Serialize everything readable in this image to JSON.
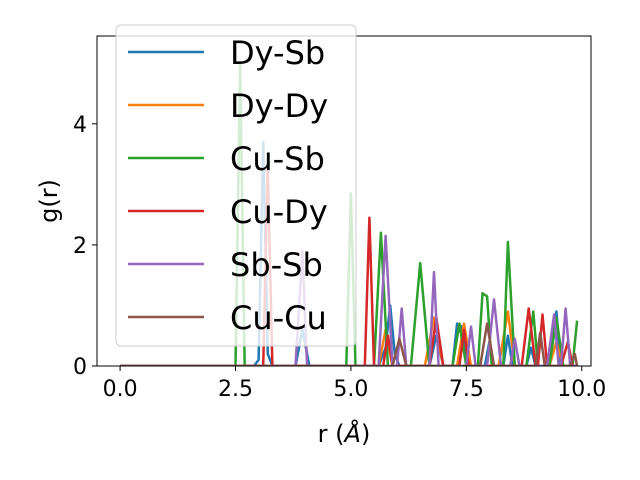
{
  "chart_data": {
    "type": "line",
    "title": "",
    "xlabel": "r (",
    "xlabel_unit": "Å",
    "xlabel_close": ")",
    "ylabel": "g(r)",
    "xlim": [
      -0.5,
      10.2
    ],
    "ylim": [
      0,
      5.45
    ],
    "xticks": [
      0.0,
      2.5,
      5.0,
      7.5,
      10.0
    ],
    "xtick_labels": [
      "0.0",
      "2.5",
      "5.0",
      "7.5",
      "10.0"
    ],
    "yticks": [
      0,
      2,
      4
    ],
    "ytick_labels": [
      "0",
      "2",
      "4"
    ],
    "legend_position": "top-left",
    "series": [
      {
        "name": "Dy-Sb",
        "color": "#1f77b4",
        "points": [
          [
            0,
            0
          ],
          [
            2.9,
            0
          ],
          [
            3.0,
            0.1
          ],
          [
            3.1,
            3.7
          ],
          [
            3.2,
            0.2
          ],
          [
            3.3,
            0
          ],
          [
            3.8,
            0
          ],
          [
            3.95,
            0.6
          ],
          [
            4.1,
            0
          ],
          [
            5.6,
            0
          ],
          [
            5.75,
            0.3
          ],
          [
            5.85,
            1.0
          ],
          [
            5.95,
            0.2
          ],
          [
            6.05,
            0
          ],
          [
            6.7,
            0
          ],
          [
            6.85,
            0.5
          ],
          [
            7.0,
            0
          ],
          [
            7.2,
            0
          ],
          [
            7.3,
            0.7
          ],
          [
            7.4,
            0.65
          ],
          [
            7.5,
            0
          ],
          [
            7.9,
            0
          ],
          [
            8.0,
            0.4
          ],
          [
            8.1,
            0
          ],
          [
            8.3,
            0
          ],
          [
            8.4,
            0.5
          ],
          [
            8.5,
            0
          ],
          [
            8.8,
            0
          ],
          [
            8.9,
            0.3
          ],
          [
            9.0,
            0
          ],
          [
            9.3,
            0
          ],
          [
            9.45,
            0.9
          ],
          [
            9.55,
            0
          ],
          [
            9.8,
            0
          ],
          [
            9.9,
            0
          ]
        ]
      },
      {
        "name": "Dy-Dy",
        "color": "#ff7f0e",
        "points": [
          [
            0,
            0
          ],
          [
            5.6,
            0
          ],
          [
            5.75,
            0.6
          ],
          [
            5.9,
            0
          ],
          [
            6.6,
            0
          ],
          [
            6.8,
            0.8
          ],
          [
            7.0,
            0
          ],
          [
            7.3,
            0
          ],
          [
            7.45,
            0.7
          ],
          [
            7.6,
            0
          ],
          [
            8.2,
            0
          ],
          [
            8.4,
            0.9
          ],
          [
            8.55,
            0
          ],
          [
            9.3,
            0
          ],
          [
            9.45,
            0.4
          ],
          [
            9.6,
            0
          ],
          [
            9.9,
            0
          ]
        ]
      },
      {
        "name": "Cu-Sb",
        "color": "#2ca02c",
        "points": [
          [
            0,
            0
          ],
          [
            2.5,
            0
          ],
          [
            2.6,
            5.0
          ],
          [
            2.7,
            0
          ],
          [
            4.9,
            0
          ],
          [
            5.0,
            2.85
          ],
          [
            5.1,
            0
          ],
          [
            5.5,
            0
          ],
          [
            5.65,
            2.2
          ],
          [
            5.8,
            0
          ],
          [
            6.3,
            0
          ],
          [
            6.5,
            1.7
          ],
          [
            6.7,
            0
          ],
          [
            7.2,
            0
          ],
          [
            7.35,
            0.7
          ],
          [
            7.5,
            0
          ],
          [
            7.75,
            0
          ],
          [
            7.85,
            1.2
          ],
          [
            7.95,
            1.15
          ],
          [
            8.05,
            0
          ],
          [
            8.3,
            0
          ],
          [
            8.4,
            2.05
          ],
          [
            8.55,
            0
          ],
          [
            8.8,
            0
          ],
          [
            8.95,
            0.9
          ],
          [
            9.05,
            0
          ],
          [
            9.3,
            0
          ],
          [
            9.45,
            0.8
          ],
          [
            9.6,
            0
          ],
          [
            9.8,
            0
          ],
          [
            9.9,
            0.75
          ]
        ]
      },
      {
        "name": "Cu-Dy",
        "color": "#d62728",
        "points": [
          [
            0,
            0
          ],
          [
            3.1,
            0
          ],
          [
            3.2,
            3.3
          ],
          [
            3.3,
            0
          ],
          [
            5.3,
            0
          ],
          [
            5.4,
            2.45
          ],
          [
            5.5,
            0
          ],
          [
            5.7,
            0
          ],
          [
            5.8,
            0.5
          ],
          [
            5.9,
            0
          ],
          [
            6.7,
            0
          ],
          [
            6.85,
            0.8
          ],
          [
            7.0,
            0
          ],
          [
            7.35,
            0
          ],
          [
            7.45,
            0.6
          ],
          [
            7.55,
            0
          ],
          [
            8.7,
            0
          ],
          [
            8.85,
            0.95
          ],
          [
            9.0,
            0
          ],
          [
            9.05,
            0
          ],
          [
            9.15,
            0.85
          ],
          [
            9.25,
            0
          ],
          [
            9.55,
            0
          ],
          [
            9.7,
            0.4
          ],
          [
            9.8,
            0
          ],
          [
            9.9,
            0
          ]
        ]
      },
      {
        "name": "Sb-Sb",
        "color": "#9467bd",
        "points": [
          [
            0,
            0
          ],
          [
            3.8,
            0
          ],
          [
            3.95,
            1.9
          ],
          [
            4.05,
            0
          ],
          [
            5.6,
            0
          ],
          [
            5.75,
            2.15
          ],
          [
            5.9,
            0
          ],
          [
            6.0,
            0
          ],
          [
            6.1,
            0.95
          ],
          [
            6.2,
            0
          ],
          [
            6.7,
            0
          ],
          [
            6.8,
            1.55
          ],
          [
            6.9,
            0
          ],
          [
            7.5,
            0
          ],
          [
            7.6,
            0.65
          ],
          [
            7.7,
            0
          ],
          [
            7.95,
            0
          ],
          [
            8.1,
            1.1
          ],
          [
            8.25,
            0
          ],
          [
            8.45,
            0
          ],
          [
            8.55,
            0.45
          ],
          [
            8.65,
            0
          ],
          [
            9.25,
            0
          ],
          [
            9.4,
            0.85
          ],
          [
            9.5,
            0
          ],
          [
            9.55,
            0
          ],
          [
            9.65,
            0.95
          ],
          [
            9.75,
            0
          ],
          [
            9.9,
            0
          ]
        ]
      },
      {
        "name": "Cu-Cu",
        "color": "#8c564b",
        "points": [
          [
            0,
            0
          ],
          [
            5.9,
            0
          ],
          [
            6.05,
            0.45
          ],
          [
            6.2,
            0
          ],
          [
            7.8,
            0
          ],
          [
            7.95,
            0.7
          ],
          [
            8.1,
            0
          ],
          [
            9.0,
            0
          ],
          [
            9.1,
            0.55
          ],
          [
            9.2,
            0
          ],
          [
            9.75,
            0
          ],
          [
            9.85,
            0.2
          ],
          [
            9.9,
            0
          ]
        ]
      }
    ]
  }
}
